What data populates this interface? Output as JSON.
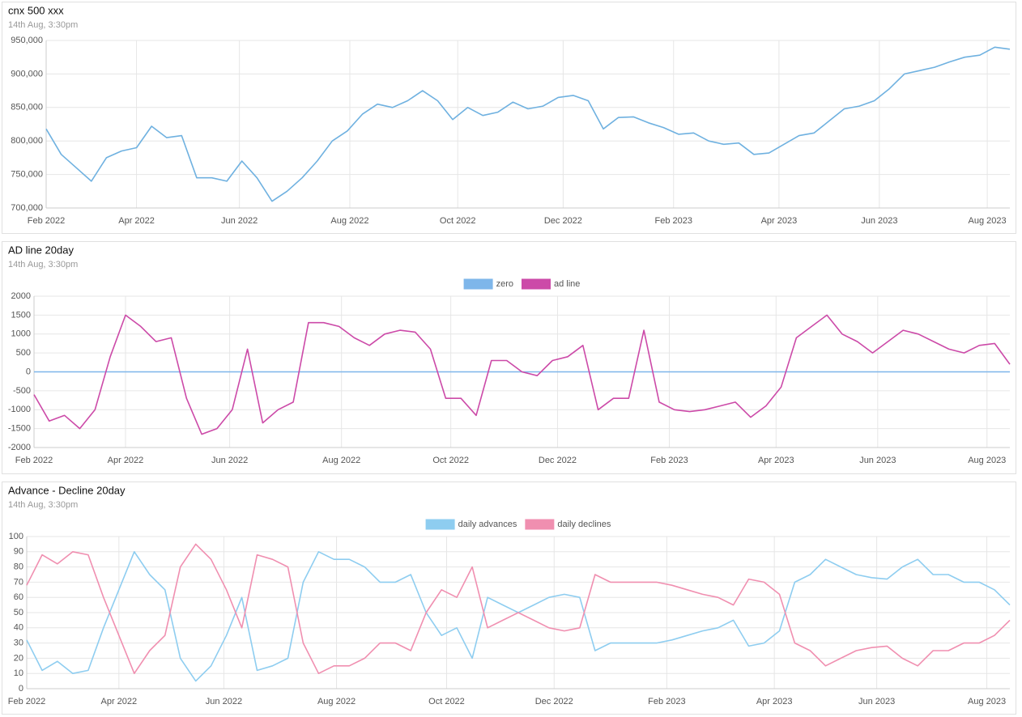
{
  "chart_data": [
    {
      "type": "line",
      "title": "cnx 500 xxx",
      "subtitle": "14th Aug, 3:30pm",
      "x": [
        0,
        6,
        12,
        18,
        24,
        30,
        36,
        42,
        48,
        54,
        60,
        66,
        72,
        78,
        84,
        90,
        96,
        102,
        108,
        114,
        120,
        126,
        132,
        138,
        144,
        150,
        156,
        162,
        168,
        174,
        180,
        186,
        192,
        198,
        204,
        210,
        216,
        222,
        228,
        234,
        240,
        246,
        252,
        258,
        264,
        270,
        276,
        282,
        288,
        294,
        300,
        306,
        312,
        318,
        324,
        330,
        336,
        342,
        348,
        354,
        360,
        366,
        372,
        378,
        384
      ],
      "series": [
        {
          "color": "#6fb1e0",
          "values": [
            818000,
            780000,
            760000,
            740000,
            775000,
            785000,
            790000,
            822000,
            805000,
            808000,
            745000,
            745000,
            740000,
            770000,
            745000,
            710000,
            725000,
            745000,
            770000,
            800000,
            815000,
            840000,
            855000,
            850000,
            860000,
            875000,
            860000,
            832000,
            850000,
            838000,
            843000,
            858000,
            848000,
            852000,
            865000,
            868000,
            860000,
            818000,
            835000,
            836000,
            827000,
            820000,
            810000,
            812000,
            800000,
            795000,
            797000,
            780000,
            782000,
            795000,
            808000,
            812000,
            830000,
            848000,
            852000,
            860000,
            878000,
            900000,
            905000,
            910000,
            918000,
            925000,
            928000,
            940000,
            937000
          ]
        }
      ],
      "xlim": [
        0,
        384
      ],
      "xticks": [
        {
          "value": 0,
          "label": "Feb 2022"
        },
        {
          "value": 36,
          "label": "Apr 2022"
        },
        {
          "value": 77,
          "label": "Jun 2022"
        },
        {
          "value": 121,
          "label": "Aug 2022"
        },
        {
          "value": 164,
          "label": "Oct 2022"
        },
        {
          "value": 206,
          "label": "Dec 2022"
        },
        {
          "value": 250,
          "label": "Feb 2023"
        },
        {
          "value": 292,
          "label": "Apr 2023"
        },
        {
          "value": 332,
          "label": "Jun 2023"
        },
        {
          "value": 375,
          "label": "Aug 2023"
        }
      ],
      "ylim": [
        700000,
        950000
      ],
      "yticks": [
        {
          "value": 700000,
          "label": "700,000"
        },
        {
          "value": 750000,
          "label": "750,000"
        },
        {
          "value": 800000,
          "label": "800,000"
        },
        {
          "value": 850000,
          "label": "850,000"
        },
        {
          "value": 900000,
          "label": "900,000"
        },
        {
          "value": 950000,
          "label": "950,000"
        }
      ],
      "grid": true
    },
    {
      "type": "line",
      "title": "AD line 20day",
      "subtitle": "14th Aug, 3:30pm",
      "x": [
        0,
        6,
        12,
        18,
        24,
        30,
        36,
        42,
        48,
        54,
        60,
        66,
        72,
        78,
        84,
        90,
        96,
        102,
        108,
        114,
        120,
        126,
        132,
        138,
        144,
        150,
        156,
        162,
        168,
        174,
        180,
        186,
        192,
        198,
        204,
        210,
        216,
        222,
        228,
        234,
        240,
        246,
        252,
        258,
        264,
        270,
        276,
        282,
        288,
        294,
        300,
        306,
        312,
        318,
        324,
        330,
        336,
        342,
        348,
        354,
        360,
        366,
        372,
        378,
        384
      ],
      "series": [
        {
          "name": "zero",
          "color": "#7eb6ea",
          "values": [
            0,
            0,
            0,
            0,
            0,
            0,
            0,
            0,
            0,
            0,
            0,
            0,
            0,
            0,
            0,
            0,
            0,
            0,
            0,
            0,
            0,
            0,
            0,
            0,
            0,
            0,
            0,
            0,
            0,
            0,
            0,
            0,
            0,
            0,
            0,
            0,
            0,
            0,
            0,
            0,
            0,
            0,
            0,
            0,
            0,
            0,
            0,
            0,
            0,
            0,
            0,
            0,
            0,
            0,
            0,
            0,
            0,
            0,
            0,
            0,
            0,
            0,
            0,
            0,
            0
          ]
        },
        {
          "name": "ad line",
          "color": "#cc4aa8",
          "values": [
            -600,
            -1300,
            -1150,
            -1500,
            -1000,
            400,
            1500,
            1200,
            800,
            900,
            -700,
            -1650,
            -1500,
            -1000,
            600,
            -1350,
            -1000,
            -800,
            1300,
            1300,
            1200,
            900,
            700,
            1000,
            1100,
            1050,
            600,
            -700,
            -700,
            -1150,
            300,
            300,
            0,
            -100,
            300,
            400,
            700,
            -1000,
            -700,
            -700,
            1100,
            -800,
            -1000,
            -1050,
            -1000,
            -900,
            -800,
            -1200,
            -900,
            -400,
            900,
            1200,
            1500,
            1000,
            800,
            500,
            800,
            1100,
            1000,
            800,
            600,
            500,
            700,
            750,
            200
          ]
        }
      ],
      "xlim": [
        0,
        384
      ],
      "xticks": [
        {
          "value": 0,
          "label": "Feb 2022"
        },
        {
          "value": 36,
          "label": "Apr 2022"
        },
        {
          "value": 77,
          "label": "Jun 2022"
        },
        {
          "value": 121,
          "label": "Aug 2022"
        },
        {
          "value": 164,
          "label": "Oct 2022"
        },
        {
          "value": 206,
          "label": "Dec 2022"
        },
        {
          "value": 250,
          "label": "Feb 2023"
        },
        {
          "value": 292,
          "label": "Apr 2023"
        },
        {
          "value": 332,
          "label": "Jun 2023"
        },
        {
          "value": 375,
          "label": "Aug 2023"
        }
      ],
      "ylim": [
        -2000,
        2000
      ],
      "yticks": [
        -2000,
        -1500,
        -1000,
        -500,
        0,
        500,
        1000,
        1500,
        2000
      ],
      "grid": true,
      "legend": "top"
    },
    {
      "type": "line",
      "title": "Advance - Decline 20day",
      "subtitle": "14th Aug, 3:30pm",
      "x": [
        0,
        6,
        12,
        18,
        24,
        30,
        36,
        42,
        48,
        54,
        60,
        66,
        72,
        78,
        84,
        90,
        96,
        102,
        108,
        114,
        120,
        126,
        132,
        138,
        144,
        150,
        156,
        162,
        168,
        174,
        180,
        186,
        192,
        198,
        204,
        210,
        216,
        222,
        228,
        234,
        240,
        246,
        252,
        258,
        264,
        270,
        276,
        282,
        288,
        294,
        300,
        306,
        312,
        318,
        324,
        330,
        336,
        342,
        348,
        354,
        360,
        366,
        372,
        378,
        384
      ],
      "series": [
        {
          "name": "daily advances",
          "color": "#8ecdf0",
          "values": [
            32,
            12,
            18,
            10,
            12,
            40,
            65,
            90,
            75,
            65,
            20,
            5,
            15,
            35,
            60,
            12,
            15,
            20,
            70,
            90,
            85,
            85,
            80,
            70,
            70,
            75,
            50,
            35,
            40,
            20,
            60,
            55,
            50,
            55,
            60,
            62,
            60,
            25,
            30,
            30,
            30,
            30,
            32,
            35,
            38,
            40,
            45,
            28,
            30,
            38,
            70,
            75,
            85,
            80,
            75,
            73,
            72,
            80,
            85,
            75,
            75,
            70,
            70,
            65,
            55
          ]
        },
        {
          "name": "daily declines",
          "color": "#f08fb0",
          "values": [
            68,
            88,
            82,
            90,
            88,
            60,
            35,
            10,
            25,
            35,
            80,
            95,
            85,
            65,
            40,
            88,
            85,
            80,
            30,
            10,
            15,
            15,
            20,
            30,
            30,
            25,
            50,
            65,
            60,
            80,
            40,
            45,
            50,
            45,
            40,
            38,
            40,
            75,
            70,
            70,
            70,
            70,
            68,
            65,
            62,
            60,
            55,
            72,
            70,
            62,
            30,
            25,
            15,
            20,
            25,
            27,
            28,
            20,
            15,
            25,
            25,
            30,
            30,
            35,
            45
          ]
        }
      ],
      "xlim": [
        0,
        384
      ],
      "xticks": [
        {
          "value": 0,
          "label": "Feb 2022"
        },
        {
          "value": 36,
          "label": "Apr 2022"
        },
        {
          "value": 77,
          "label": "Jun 2022"
        },
        {
          "value": 121,
          "label": "Aug 2022"
        },
        {
          "value": 164,
          "label": "Oct 2022"
        },
        {
          "value": 206,
          "label": "Dec 2022"
        },
        {
          "value": 250,
          "label": "Feb 2023"
        },
        {
          "value": 292,
          "label": "Apr 2023"
        },
        {
          "value": 332,
          "label": "Jun 2023"
        },
        {
          "value": 375,
          "label": "Aug 2023"
        }
      ],
      "ylim": [
        0,
        100
      ],
      "yticks": [
        0,
        10,
        20,
        30,
        40,
        50,
        60,
        70,
        80,
        90,
        100
      ],
      "grid": true,
      "legend": "top"
    }
  ]
}
